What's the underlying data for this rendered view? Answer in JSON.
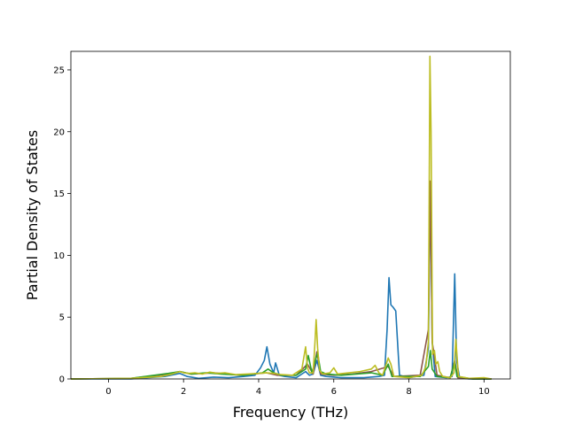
{
  "chart_data": {
    "type": "line",
    "title": "",
    "xlabel": "Frequency (THz)",
    "ylabel": "Partial Density of States",
    "xlim": [
      -1.0,
      10.7
    ],
    "ylim": [
      0,
      26.5
    ],
    "xticks": [
      0,
      2,
      4,
      6,
      8,
      10
    ],
    "yticks": [
      0,
      5,
      10,
      15,
      20,
      25
    ],
    "grid": false,
    "legend": "none",
    "series": [
      {
        "color": "#1f77b4",
        "x": [
          -1.0,
          0.6,
          1.5,
          1.9,
          2.1,
          2.4,
          2.8,
          3.2,
          3.6,
          3.9,
          4.05,
          4.15,
          4.22,
          4.3,
          4.4,
          4.45,
          4.55,
          4.7,
          5.0,
          5.25,
          5.35,
          5.45,
          5.55,
          5.65,
          5.8,
          6.2,
          6.8,
          7.2,
          7.35,
          7.42,
          7.47,
          7.52,
          7.58,
          7.65,
          7.75,
          8.0,
          8.4,
          8.52,
          8.57,
          8.62,
          8.7,
          9.0,
          9.15,
          9.22,
          9.27,
          9.35,
          9.6,
          10.2
        ],
        "y": [
          0.0,
          0.0,
          0.2,
          0.45,
          0.2,
          0.05,
          0.15,
          0.1,
          0.2,
          0.3,
          0.9,
          1.5,
          2.6,
          1.2,
          0.5,
          1.3,
          0.3,
          0.2,
          0.1,
          0.6,
          0.3,
          0.4,
          1.5,
          0.3,
          0.2,
          0.1,
          0.1,
          0.2,
          0.3,
          4.0,
          8.2,
          6.0,
          5.8,
          5.5,
          0.3,
          0.1,
          0.3,
          2.5,
          15.7,
          3.0,
          0.2,
          0.1,
          0.2,
          8.5,
          1.5,
          0.1,
          0.0,
          0.0
        ]
      },
      {
        "color": "#8c564b",
        "x": [
          -1.0,
          0.6,
          1.6,
          1.9,
          2.2,
          2.8,
          3.5,
          4.2,
          4.5,
          5.0,
          5.3,
          5.45,
          5.55,
          5.65,
          6.0,
          6.5,
          7.0,
          7.45,
          7.6,
          8.3,
          8.52,
          8.57,
          8.62,
          8.75,
          9.1,
          9.22,
          9.3,
          9.7,
          10.2
        ],
        "y": [
          0.0,
          0.05,
          0.4,
          0.6,
          0.4,
          0.5,
          0.3,
          0.5,
          0.3,
          0.3,
          1.2,
          0.4,
          2.2,
          0.4,
          0.3,
          0.4,
          0.6,
          1.0,
          0.2,
          0.3,
          4.0,
          16.0,
          3.0,
          0.3,
          0.1,
          1.5,
          0.1,
          0.0,
          0.0
        ]
      },
      {
        "color": "#2ca02c",
        "x": [
          -1.0,
          0.6,
          1.6,
          1.9,
          2.2,
          2.6,
          3.0,
          3.6,
          4.1,
          4.25,
          4.4,
          4.6,
          5.0,
          5.25,
          5.32,
          5.42,
          5.52,
          5.57,
          5.65,
          5.8,
          6.2,
          6.6,
          7.0,
          7.3,
          7.45,
          7.55,
          8.3,
          8.52,
          8.57,
          8.62,
          8.75,
          9.1,
          9.22,
          9.28,
          9.7,
          10.2
        ],
        "y": [
          0.0,
          0.05,
          0.45,
          0.6,
          0.4,
          0.5,
          0.4,
          0.3,
          0.5,
          0.8,
          0.5,
          0.3,
          0.3,
          0.8,
          1.9,
          0.5,
          1.6,
          2.1,
          0.6,
          0.4,
          0.3,
          0.4,
          0.5,
          0.3,
          1.2,
          0.2,
          0.2,
          1.0,
          2.3,
          0.8,
          0.2,
          0.1,
          1.4,
          0.2,
          0.0,
          0.0
        ]
      },
      {
        "color": "#bcbd22",
        "x": [
          -1.0,
          0.6,
          1.4,
          1.7,
          1.9,
          2.0,
          2.15,
          2.3,
          2.5,
          2.7,
          2.9,
          3.1,
          3.4,
          3.7,
          4.0,
          4.2,
          4.4,
          4.6,
          4.9,
          5.15,
          5.25,
          5.3,
          5.35,
          5.45,
          5.5,
          5.53,
          5.57,
          5.62,
          5.7,
          5.9,
          6.0,
          6.1,
          6.4,
          6.7,
          7.0,
          7.1,
          7.2,
          7.3,
          7.45,
          7.52,
          7.6,
          8.0,
          8.35,
          8.45,
          8.52,
          8.56,
          8.59,
          8.63,
          8.68,
          8.72,
          8.77,
          8.82,
          8.9,
          9.1,
          9.2,
          9.25,
          9.32,
          9.6,
          10.0,
          10.2
        ],
        "y": [
          0.0,
          0.05,
          0.2,
          0.4,
          0.6,
          0.5,
          0.45,
          0.5,
          0.4,
          0.55,
          0.45,
          0.5,
          0.35,
          0.4,
          0.45,
          0.5,
          0.45,
          0.35,
          0.3,
          0.8,
          2.6,
          0.9,
          0.5,
          0.5,
          3.0,
          4.8,
          2.5,
          0.7,
          0.4,
          0.5,
          0.9,
          0.4,
          0.5,
          0.6,
          0.8,
          1.1,
          0.5,
          0.3,
          1.7,
          1.2,
          0.2,
          0.1,
          0.3,
          1.0,
          3.0,
          26.1,
          20.0,
          2.0,
          2.3,
          1.2,
          1.4,
          0.6,
          0.2,
          0.1,
          0.5,
          3.2,
          0.2,
          0.05,
          0.1,
          0.0
        ]
      }
    ]
  }
}
